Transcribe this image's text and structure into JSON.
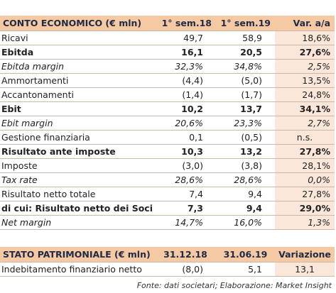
{
  "income": {
    "header": {
      "label": "CONTO ECONOMICO (€ mln)",
      "col_a": "1° sem.18",
      "col_b": "1° sem.19",
      "col_c": "Var. a/a"
    },
    "rows": [
      {
        "label": "Ricavi",
        "a": "49,7",
        "b": "58,9",
        "c": "18,6%",
        "style": ""
      },
      {
        "label": "Ebitda",
        "a": "16,1",
        "b": "20,5",
        "c": "27,6%",
        "style": "bold"
      },
      {
        "label": "Ebitda margin",
        "a": "32,3%",
        "b": "34,8%",
        "c": "2,5%",
        "style": "ital"
      },
      {
        "label": "Ammortamenti",
        "a": "(4,4)",
        "b": "(5,0)",
        "c": "13,5%",
        "style": ""
      },
      {
        "label": "Accantonamenti",
        "a": "(1,4)",
        "b": "(1,7)",
        "c": "24,8%",
        "style": ""
      },
      {
        "label": "Ebit",
        "a": "10,2",
        "b": "13,7",
        "c": "34,1%",
        "style": "bold"
      },
      {
        "label": "Ebit margin",
        "a": "20,6%",
        "b": "23,3%",
        "c": "2,7%",
        "style": "ital"
      },
      {
        "label": "Gestione finanziaria",
        "a": "0,1",
        "b": "(0,5)",
        "c": "n.s.",
        "style": "center"
      },
      {
        "label": "Risultato ante imposte",
        "a": "10,3",
        "b": "13,2",
        "c": "27,8%",
        "style": "bold"
      },
      {
        "label": "Imposte",
        "a": "(3,0)",
        "b": "(3,8)",
        "c": "28,1%",
        "style": ""
      },
      {
        "label": "Tax rate",
        "a": "28,6%",
        "b": "28,6%",
        "c": "0,0%",
        "style": "ital"
      },
      {
        "label": "Risultato netto totale",
        "a": "7,4",
        "b": "9,4",
        "c": "27,8%",
        "style": ""
      },
      {
        "label": "di cui: Risultato netto dei Soci",
        "a": "7,3",
        "b": "9,4",
        "c": "29,0%",
        "style": "bold"
      },
      {
        "label": "Net margin",
        "a": "14,7%",
        "b": "16,0%",
        "c": "1,3%",
        "style": "ital"
      }
    ]
  },
  "balance": {
    "header": {
      "label": "STATO PATRIMONIALE (€ mln)",
      "col_a": "31.12.18",
      "col_b": "31.06.19",
      "col_c": "Variazione"
    },
    "rows": [
      {
        "label": "Indebitamento finanziario netto",
        "a": "(8,0)",
        "b": "5,1",
        "c": "13,1",
        "style": "center"
      }
    ]
  },
  "source": "Fonte: dati societari; Elaborazione: Market Insight",
  "colors": {
    "header_bg": "#f4c9a3",
    "var_col_bg": "#fbe7d9",
    "header_text": "#1f2a44"
  }
}
